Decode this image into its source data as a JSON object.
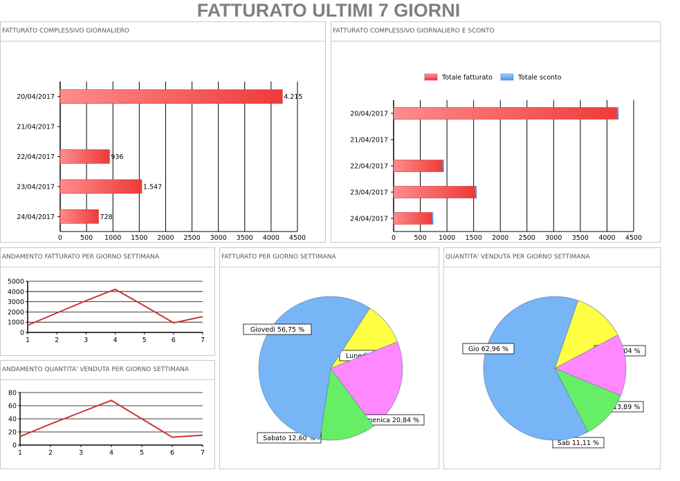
{
  "page_title": "FATTURATO ULTIMI 7 GIORNI",
  "colors": {
    "red_bar": "#ff5a5a",
    "blue": "#66aaf5",
    "green": "#66ee66",
    "yellow": "#ffff44",
    "pink": "#ff88ff",
    "line": "#cc3333"
  },
  "chart_data": [
    {
      "id": "fatturato-giornaliero",
      "type": "bar",
      "title": "FATTURATO COMPLESSIVO GIORNALIERO",
      "orientation": "horizontal",
      "categories": [
        "20/04/2017",
        "21/04/2017",
        "22/04/2017",
        "23/04/2017",
        "24/04/2017"
      ],
      "values": [
        4215,
        0,
        936,
        1547,
        728
      ],
      "value_labels": [
        "4.215",
        "",
        "936",
        "1.547",
        "728"
      ],
      "xlim": [
        0,
        4500
      ],
      "xticks": [
        0,
        500,
        1000,
        1500,
        2000,
        2500,
        3000,
        3500,
        4000,
        4500
      ],
      "grid": "vertical"
    },
    {
      "id": "fatturato-e-sconto",
      "type": "bar",
      "title": "FATTURATO COMPLESSIVO GIORNALIERO E SCONTO",
      "orientation": "horizontal",
      "stacked": true,
      "legend_position": "top",
      "categories": [
        "20/04/2017",
        "21/04/2017",
        "22/04/2017",
        "23/04/2017",
        "24/04/2017"
      ],
      "series": [
        {
          "name": "Totale fatturato",
          "values": [
            4190,
            0,
            920,
            1535,
            720
          ]
        },
        {
          "name": "Totale sconto",
          "values": [
            25,
            0,
            16,
            12,
            8
          ]
        }
      ],
      "xlim": [
        0,
        4500
      ],
      "xticks": [
        0,
        500,
        1000,
        1500,
        2000,
        2500,
        3000,
        3500,
        4000,
        4500
      ],
      "grid": "vertical"
    },
    {
      "id": "andamento-fatturato",
      "type": "line",
      "title": "ANDAMENTO FATTURATO PER GIORNO SETTIMANA",
      "x": [
        1,
        2,
        3,
        4,
        5,
        6,
        7
      ],
      "series": [
        {
          "values": [
            700,
            1900,
            3100,
            4215,
            2600,
            936,
            1547
          ]
        }
      ],
      "ylim": [
        0,
        5000
      ],
      "yticks": [
        0,
        1000,
        2000,
        3000,
        4000,
        5000
      ],
      "xticks": [
        1,
        2,
        3,
        4,
        5,
        6,
        7
      ],
      "grid": "horizontal"
    },
    {
      "id": "andamento-quantita",
      "type": "line",
      "title": "ANDAMENTO QUANTITA' VENDUTA PER GIORNO SETTIMANA",
      "x": [
        1,
        2,
        3,
        4,
        5,
        6,
        7
      ],
      "series": [
        {
          "values": [
            13,
            32,
            50,
            68,
            40,
            12,
            15
          ]
        }
      ],
      "ylim": [
        0,
        80
      ],
      "yticks": [
        0,
        20,
        40,
        60,
        80
      ],
      "xticks": [
        1,
        2,
        3,
        4,
        5,
        6,
        7
      ],
      "grid": "horizontal"
    },
    {
      "id": "fatturato-giorno-settimana",
      "type": "pie",
      "title": "FATTURATO PER GIORNO SETTIMANA",
      "slices": [
        {
          "label": "Lunedì 9,80 %",
          "value": 9.8,
          "color": "#ffff44"
        },
        {
          "label": "Domenica 20,84 %",
          "value": 20.84,
          "color": "#ff88ff"
        },
        {
          "label": "Sabato 12,60 %",
          "value": 12.6,
          "color": "#66ee66"
        },
        {
          "label": "Giovedì 56,75 %",
          "value": 56.75,
          "color": "#77b5f7"
        }
      ]
    },
    {
      "id": "quantita-giorno-settimana",
      "type": "pie",
      "title": "QUANTITA' VENDUTA PER GIORNO SETTIMANA",
      "slices": [
        {
          "label": "Lun 12,04 %",
          "value": 12.04,
          "color": "#ffff44"
        },
        {
          "label": "Dom 13,89 %",
          "value": 13.89,
          "color": "#ff88ff"
        },
        {
          "label": "Sab 11,11 %",
          "value": 11.11,
          "color": "#66ee66"
        },
        {
          "label": "Gio 62,96 %",
          "value": 62.96,
          "color": "#77b5f7"
        }
      ]
    }
  ]
}
